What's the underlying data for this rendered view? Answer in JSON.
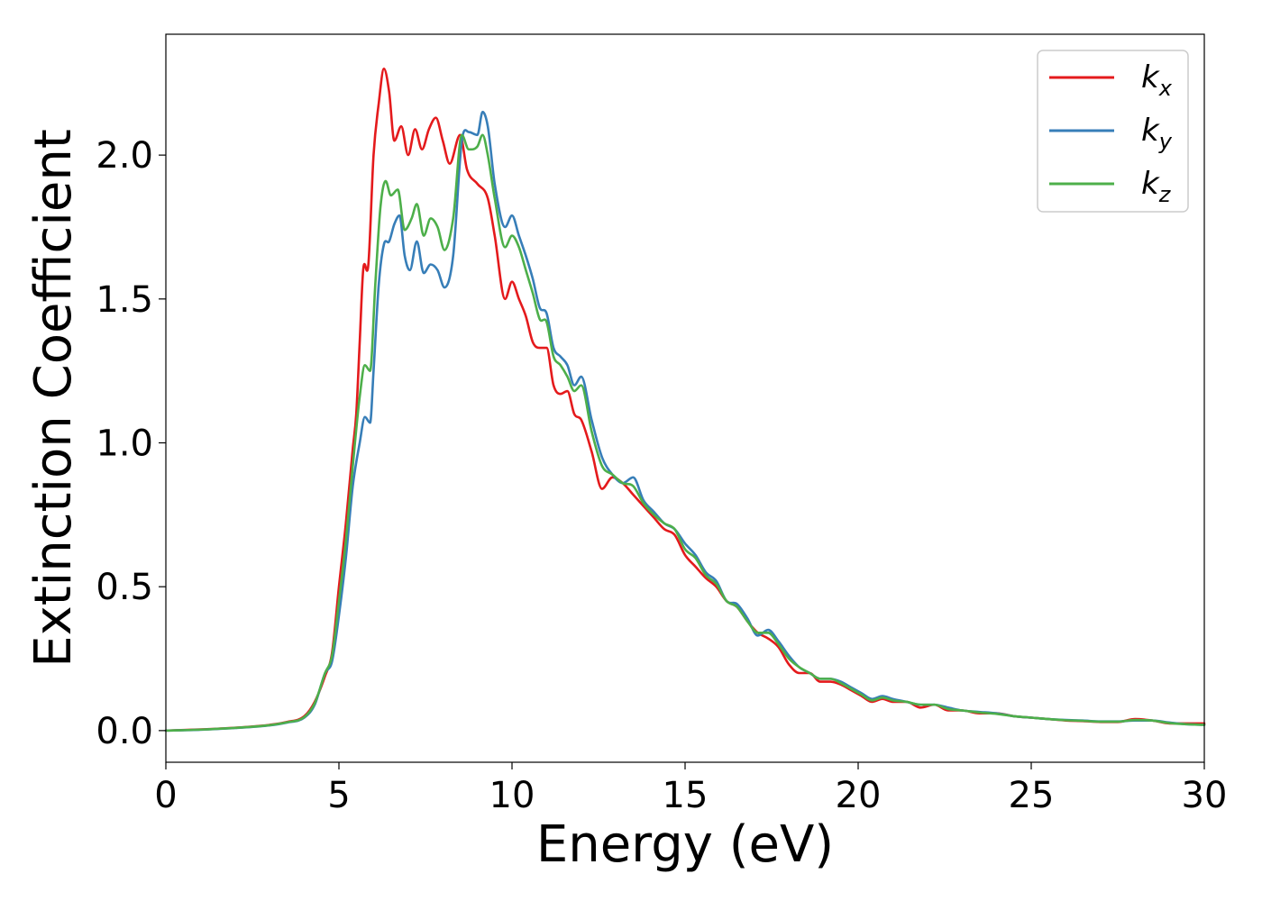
{
  "chart_data": {
    "type": "line",
    "title": "",
    "xlabel": "Energy (eV)",
    "ylabel": "Extinction Coefficient",
    "xlim": [
      0,
      30
    ],
    "ylim": [
      -0.11,
      2.42
    ],
    "xticks": [
      0,
      5,
      10,
      15,
      20,
      25,
      30
    ],
    "xtick_labels": [
      "0",
      "5",
      "10",
      "15",
      "20",
      "25",
      "30"
    ],
    "yticks": [
      0.0,
      0.5,
      1.0,
      1.5,
      2.0
    ],
    "ytick_labels": [
      "0.0",
      "0.5",
      "1.0",
      "1.5",
      "2.0"
    ],
    "grid": false,
    "legend_position": "top-right",
    "series": [
      {
        "name": "k",
        "subscript": "x",
        "color": "#e41a1c",
        "points": [
          [
            0,
            0
          ],
          [
            1,
            0.004
          ],
          [
            2,
            0.01
          ],
          [
            3,
            0.02
          ],
          [
            3.5,
            0.03
          ],
          [
            4,
            0.05
          ],
          [
            4.3,
            0.1
          ],
          [
            4.6,
            0.19
          ],
          [
            4.8,
            0.27
          ],
          [
            5,
            0.5
          ],
          [
            5.2,
            0.72
          ],
          [
            5.4,
            0.98
          ],
          [
            5.5,
            1.1
          ],
          [
            5.6,
            1.35
          ],
          [
            5.7,
            1.6
          ],
          [
            5.85,
            1.62
          ],
          [
            6,
            2.0
          ],
          [
            6.15,
            2.18
          ],
          [
            6.3,
            2.3
          ],
          [
            6.45,
            2.22
          ],
          [
            6.6,
            2.05
          ],
          [
            6.8,
            2.1
          ],
          [
            7.0,
            2.0
          ],
          [
            7.2,
            2.09
          ],
          [
            7.4,
            2.02
          ],
          [
            7.6,
            2.09
          ],
          [
            7.8,
            2.13
          ],
          [
            8.0,
            2.05
          ],
          [
            8.2,
            1.97
          ],
          [
            8.5,
            2.07
          ],
          [
            8.7,
            1.95
          ],
          [
            9.0,
            1.9
          ],
          [
            9.3,
            1.85
          ],
          [
            9.5,
            1.72
          ],
          [
            9.8,
            1.5
          ],
          [
            10.0,
            1.56
          ],
          [
            10.2,
            1.5
          ],
          [
            10.4,
            1.44
          ],
          [
            10.6,
            1.35
          ],
          [
            10.8,
            1.33
          ],
          [
            11.0,
            1.33
          ],
          [
            11.2,
            1.2
          ],
          [
            11.4,
            1.17
          ],
          [
            11.6,
            1.18
          ],
          [
            11.8,
            1.1
          ],
          [
            12.0,
            1.08
          ],
          [
            12.3,
            0.97
          ],
          [
            12.6,
            0.84
          ],
          [
            12.9,
            0.88
          ],
          [
            13.2,
            0.86
          ],
          [
            13.5,
            0.82
          ],
          [
            13.8,
            0.78
          ],
          [
            14.1,
            0.74
          ],
          [
            14.4,
            0.7
          ],
          [
            14.7,
            0.68
          ],
          [
            15.0,
            0.61
          ],
          [
            15.3,
            0.57
          ],
          [
            15.6,
            0.53
          ],
          [
            15.9,
            0.5
          ],
          [
            16.2,
            0.45
          ],
          [
            16.5,
            0.43
          ],
          [
            16.8,
            0.38
          ],
          [
            17.1,
            0.34
          ],
          [
            17.4,
            0.32
          ],
          [
            17.7,
            0.29
          ],
          [
            18.0,
            0.23
          ],
          [
            18.3,
            0.2
          ],
          [
            18.6,
            0.2
          ],
          [
            18.9,
            0.17
          ],
          [
            19.2,
            0.17
          ],
          [
            19.5,
            0.16
          ],
          [
            19.8,
            0.14
          ],
          [
            20.1,
            0.12
          ],
          [
            20.4,
            0.1
          ],
          [
            20.7,
            0.11
          ],
          [
            21.0,
            0.1
          ],
          [
            21.4,
            0.1
          ],
          [
            21.8,
            0.08
          ],
          [
            22.2,
            0.09
          ],
          [
            22.6,
            0.07
          ],
          [
            23.0,
            0.07
          ],
          [
            23.5,
            0.06
          ],
          [
            24.0,
            0.06
          ],
          [
            24.5,
            0.05
          ],
          [
            25.0,
            0.045
          ],
          [
            25.5,
            0.04
          ],
          [
            26.0,
            0.035
          ],
          [
            26.5,
            0.033
          ],
          [
            27.0,
            0.03
          ],
          [
            27.5,
            0.03
          ],
          [
            28.0,
            0.04
          ],
          [
            28.5,
            0.035
          ],
          [
            29.0,
            0.025
          ],
          [
            29.5,
            0.025
          ],
          [
            30,
            0.025
          ]
        ]
      },
      {
        "name": "k",
        "subscript": "y",
        "color": "#377eb8",
        "points": [
          [
            0,
            0
          ],
          [
            1,
            0.003
          ],
          [
            2,
            0.009
          ],
          [
            3,
            0.018
          ],
          [
            3.5,
            0.028
          ],
          [
            4,
            0.045
          ],
          [
            4.3,
            0.09
          ],
          [
            4.6,
            0.2
          ],
          [
            4.8,
            0.24
          ],
          [
            5,
            0.4
          ],
          [
            5.2,
            0.6
          ],
          [
            5.4,
            0.85
          ],
          [
            5.6,
            1.0
          ],
          [
            5.75,
            1.09
          ],
          [
            5.9,
            1.07
          ],
          [
            6.0,
            1.25
          ],
          [
            6.15,
            1.55
          ],
          [
            6.3,
            1.69
          ],
          [
            6.45,
            1.7
          ],
          [
            6.6,
            1.76
          ],
          [
            6.75,
            1.79
          ],
          [
            6.9,
            1.65
          ],
          [
            7.05,
            1.6
          ],
          [
            7.25,
            1.7
          ],
          [
            7.45,
            1.59
          ],
          [
            7.65,
            1.62
          ],
          [
            7.85,
            1.6
          ],
          [
            8.05,
            1.54
          ],
          [
            8.3,
            1.65
          ],
          [
            8.55,
            2.05
          ],
          [
            8.75,
            2.08
          ],
          [
            9.0,
            2.07
          ],
          [
            9.15,
            2.15
          ],
          [
            9.3,
            2.1
          ],
          [
            9.5,
            1.9
          ],
          [
            9.8,
            1.75
          ],
          [
            10.0,
            1.79
          ],
          [
            10.2,
            1.72
          ],
          [
            10.4,
            1.65
          ],
          [
            10.6,
            1.57
          ],
          [
            10.8,
            1.47
          ],
          [
            11.0,
            1.45
          ],
          [
            11.2,
            1.33
          ],
          [
            11.4,
            1.3
          ],
          [
            11.6,
            1.27
          ],
          [
            11.8,
            1.2
          ],
          [
            12.0,
            1.23
          ],
          [
            12.3,
            1.08
          ],
          [
            12.6,
            0.95
          ],
          [
            12.9,
            0.89
          ],
          [
            13.2,
            0.86
          ],
          [
            13.5,
            0.88
          ],
          [
            13.8,
            0.8
          ],
          [
            14.1,
            0.76
          ],
          [
            14.4,
            0.72
          ],
          [
            14.7,
            0.7
          ],
          [
            15.0,
            0.65
          ],
          [
            15.3,
            0.61
          ],
          [
            15.6,
            0.55
          ],
          [
            15.9,
            0.52
          ],
          [
            16.2,
            0.45
          ],
          [
            16.5,
            0.44
          ],
          [
            16.8,
            0.39
          ],
          [
            17.1,
            0.33
          ],
          [
            17.4,
            0.35
          ],
          [
            17.7,
            0.31
          ],
          [
            18.0,
            0.26
          ],
          [
            18.3,
            0.22
          ],
          [
            18.6,
            0.2
          ],
          [
            18.9,
            0.18
          ],
          [
            19.2,
            0.18
          ],
          [
            19.5,
            0.17
          ],
          [
            19.8,
            0.15
          ],
          [
            20.1,
            0.13
          ],
          [
            20.4,
            0.11
          ],
          [
            20.7,
            0.12
          ],
          [
            21.0,
            0.11
          ],
          [
            21.4,
            0.1
          ],
          [
            21.8,
            0.09
          ],
          [
            22.2,
            0.09
          ],
          [
            22.6,
            0.08
          ],
          [
            23.0,
            0.07
          ],
          [
            23.5,
            0.065
          ],
          [
            24.0,
            0.06
          ],
          [
            24.5,
            0.05
          ],
          [
            25.0,
            0.045
          ],
          [
            25.5,
            0.04
          ],
          [
            26.0,
            0.037
          ],
          [
            26.5,
            0.035
          ],
          [
            27.0,
            0.032
          ],
          [
            27.5,
            0.032
          ],
          [
            28.0,
            0.035
          ],
          [
            28.5,
            0.035
          ],
          [
            29.0,
            0.028
          ],
          [
            29.5,
            0.022
          ],
          [
            30,
            0.02
          ]
        ]
      },
      {
        "name": "k",
        "subscript": "z",
        "color": "#4daf4a",
        "points": [
          [
            0,
            0
          ],
          [
            1,
            0.0035
          ],
          [
            2,
            0.0095
          ],
          [
            3,
            0.019
          ],
          [
            3.5,
            0.029
          ],
          [
            4,
            0.047
          ],
          [
            4.3,
            0.095
          ],
          [
            4.6,
            0.2
          ],
          [
            4.8,
            0.26
          ],
          [
            5,
            0.45
          ],
          [
            5.2,
            0.66
          ],
          [
            5.4,
            0.92
          ],
          [
            5.6,
            1.16
          ],
          [
            5.75,
            1.27
          ],
          [
            5.9,
            1.25
          ],
          [
            6.05,
            1.55
          ],
          [
            6.2,
            1.82
          ],
          [
            6.35,
            1.91
          ],
          [
            6.5,
            1.86
          ],
          [
            6.7,
            1.88
          ],
          [
            6.9,
            1.74
          ],
          [
            7.1,
            1.78
          ],
          [
            7.25,
            1.83
          ],
          [
            7.45,
            1.72
          ],
          [
            7.65,
            1.78
          ],
          [
            7.85,
            1.75
          ],
          [
            8.05,
            1.67
          ],
          [
            8.3,
            1.78
          ],
          [
            8.55,
            2.07
          ],
          [
            8.75,
            2.02
          ],
          [
            9.0,
            2.03
          ],
          [
            9.15,
            2.07
          ],
          [
            9.3,
            2.0
          ],
          [
            9.5,
            1.85
          ],
          [
            9.8,
            1.68
          ],
          [
            10.0,
            1.72
          ],
          [
            10.2,
            1.68
          ],
          [
            10.4,
            1.6
          ],
          [
            10.6,
            1.52
          ],
          [
            10.8,
            1.43
          ],
          [
            11.0,
            1.42
          ],
          [
            11.2,
            1.3
          ],
          [
            11.4,
            1.27
          ],
          [
            11.6,
            1.23
          ],
          [
            11.8,
            1.18
          ],
          [
            12.0,
            1.2
          ],
          [
            12.3,
            1.04
          ],
          [
            12.6,
            0.92
          ],
          [
            12.9,
            0.89
          ],
          [
            13.2,
            0.86
          ],
          [
            13.5,
            0.85
          ],
          [
            13.8,
            0.79
          ],
          [
            14.1,
            0.75
          ],
          [
            14.4,
            0.72
          ],
          [
            14.7,
            0.7
          ],
          [
            15.0,
            0.63
          ],
          [
            15.3,
            0.6
          ],
          [
            15.6,
            0.54
          ],
          [
            15.9,
            0.51
          ],
          [
            16.2,
            0.45
          ],
          [
            16.5,
            0.43
          ],
          [
            16.8,
            0.38
          ],
          [
            17.1,
            0.34
          ],
          [
            17.4,
            0.34
          ],
          [
            17.7,
            0.3
          ],
          [
            18.0,
            0.25
          ],
          [
            18.3,
            0.22
          ],
          [
            18.6,
            0.2
          ],
          [
            18.9,
            0.18
          ],
          [
            19.2,
            0.18
          ],
          [
            19.5,
            0.165
          ],
          [
            19.8,
            0.145
          ],
          [
            20.1,
            0.125
          ],
          [
            20.4,
            0.105
          ],
          [
            20.7,
            0.115
          ],
          [
            21.0,
            0.105
          ],
          [
            21.4,
            0.1
          ],
          [
            21.8,
            0.09
          ],
          [
            22.2,
            0.09
          ],
          [
            22.6,
            0.075
          ],
          [
            23.0,
            0.07
          ],
          [
            23.5,
            0.063
          ],
          [
            24.0,
            0.058
          ],
          [
            24.5,
            0.05
          ],
          [
            25.0,
            0.045
          ],
          [
            25.5,
            0.04
          ],
          [
            26.0,
            0.036
          ],
          [
            26.5,
            0.034
          ],
          [
            27.0,
            0.031
          ],
          [
            27.5,
            0.031
          ],
          [
            28.0,
            0.037
          ],
          [
            28.5,
            0.035
          ],
          [
            29.0,
            0.026
          ],
          [
            29.5,
            0.022
          ],
          [
            30,
            0.02
          ]
        ]
      }
    ]
  }
}
